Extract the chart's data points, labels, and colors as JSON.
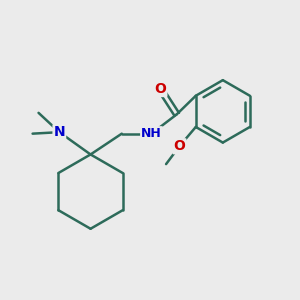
{
  "background_color": "#ebebeb",
  "bond_color": "#2d6b5a",
  "atom_colors": {
    "N": "#0000cc",
    "O": "#cc0000"
  },
  "figsize": [
    3.0,
    3.0
  ],
  "dpi": 100
}
